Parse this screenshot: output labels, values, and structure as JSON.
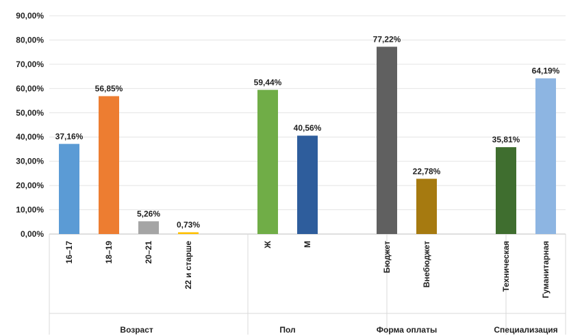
{
  "chart_data": {
    "type": "bar",
    "title": "",
    "xlabel": "",
    "ylabel": "",
    "ylim": [
      0,
      90
    ],
    "grid": true,
    "y_ticks": [
      "0,00%",
      "10,00%",
      "20,00%",
      "30,00%",
      "40,00%",
      "50,00%",
      "60,00%",
      "70,00%",
      "80,00%",
      "90,00%"
    ],
    "groups": [
      {
        "name": "Возраст",
        "bars": [
          {
            "category": "16–17",
            "value": 37.16,
            "label": "37,16%",
            "color": "#5b9bd5"
          },
          {
            "category": "18–19",
            "value": 56.85,
            "label": "56,85%",
            "color": "#ed7d31"
          },
          {
            "category": "20–21",
            "value": 5.26,
            "label": "5,26%",
            "color": "#a5a5a5"
          },
          {
            "category": "22 и старше",
            "value": 0.73,
            "label": "0,73%",
            "color": "#ffc000"
          }
        ]
      },
      {
        "name": "Пол",
        "bars": [
          {
            "category": "Ж",
            "value": 59.44,
            "label": "59,44%",
            "color": "#70ad47"
          },
          {
            "category": "М",
            "value": 40.56,
            "label": "40,56%",
            "color": "#2e5d9c"
          }
        ]
      },
      {
        "name": "Форма оплаты",
        "bars": [
          {
            "category": "Бюджет",
            "value": 77.22,
            "label": "77,22%",
            "color": "#606060"
          },
          {
            "category": "Внебюджет",
            "value": 22.78,
            "label": "22,78%",
            "color": "#a67a10"
          }
        ]
      },
      {
        "name": "Специализация",
        "bars": [
          {
            "category": "Техническая",
            "value": 35.81,
            "label": "35,81%",
            "color": "#3f6e2f"
          },
          {
            "category": "Гуманитарная",
            "value": 64.19,
            "label": "64,19%",
            "color": "#8db5e2"
          }
        ]
      }
    ]
  }
}
